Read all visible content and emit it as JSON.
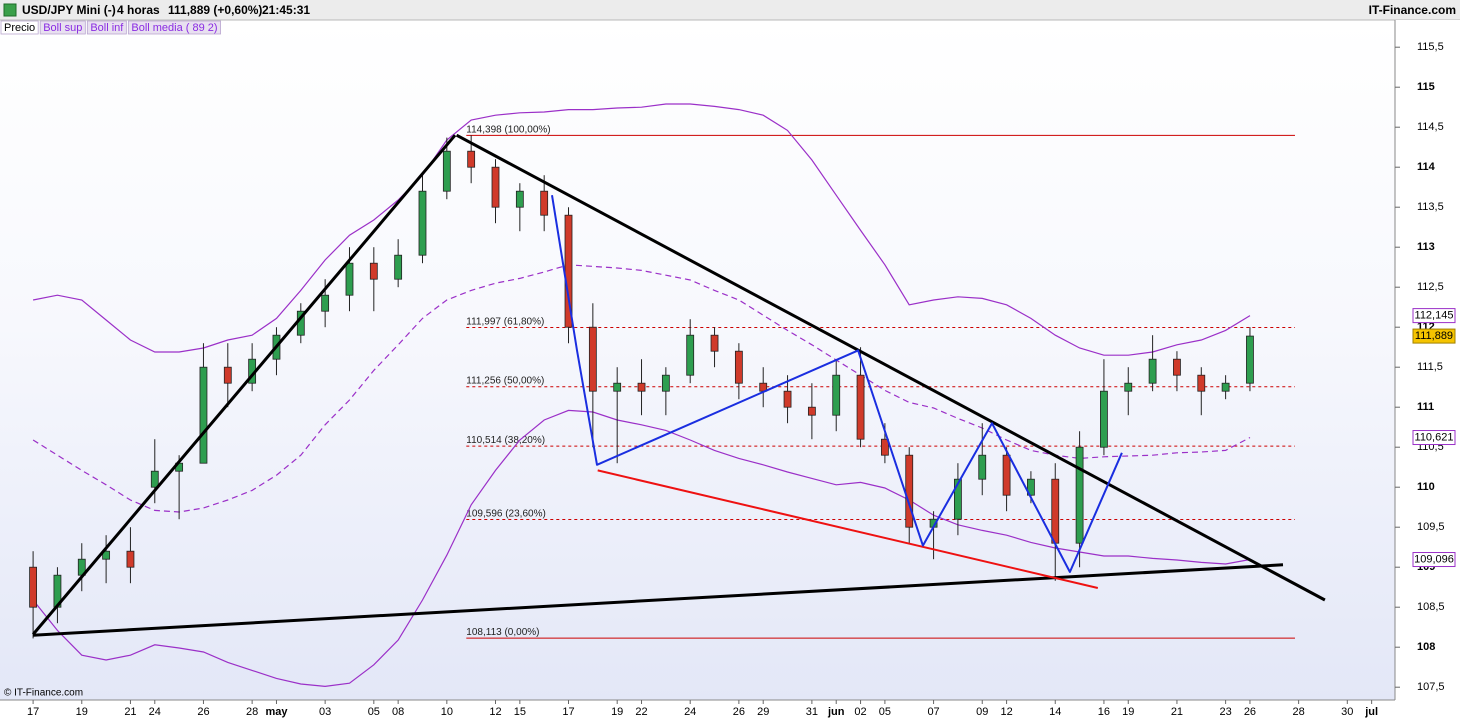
{
  "header": {
    "symbol": "USD/JPY Mini (-)",
    "period": "4 horas",
    "quote": "111,889 (+0,60%)",
    "time": "21:45:31",
    "brand": "IT-Finance.com"
  },
  "footer": "© IT-Finance.com",
  "chart_data": {
    "type": "candlestick",
    "x": [
      0,
      1,
      2,
      3,
      4,
      5,
      6,
      7,
      8,
      9,
      10,
      11,
      12,
      13,
      14,
      15,
      16,
      17,
      18,
      19,
      20,
      21,
      22,
      23,
      24,
      25,
      26,
      27,
      28,
      29,
      30,
      31,
      32,
      33,
      34,
      35,
      36,
      37,
      38,
      39,
      40,
      41,
      42,
      43,
      44,
      45,
      46,
      47,
      48,
      49,
      50
    ],
    "xlim": [
      -1.36,
      55.96
    ],
    "xticks": [
      {
        "value": 0,
        "label": "17"
      },
      {
        "value": 2,
        "label": "19"
      },
      {
        "value": 4,
        "label": "21"
      },
      {
        "value": 5,
        "label": "24"
      },
      {
        "value": 7,
        "label": "26"
      },
      {
        "value": 9,
        "label": "28"
      },
      {
        "value": 10,
        "label": "may"
      },
      {
        "value": 12,
        "label": "03"
      },
      {
        "value": 14,
        "label": "05"
      },
      {
        "value": 15,
        "label": "08"
      },
      {
        "value": 17,
        "label": "10"
      },
      {
        "value": 19,
        "label": "12"
      },
      {
        "value": 20,
        "label": "15"
      },
      {
        "value": 22,
        "label": "17"
      },
      {
        "value": 24,
        "label": "19"
      },
      {
        "value": 25,
        "label": "22"
      },
      {
        "value": 27,
        "label": "24"
      },
      {
        "value": 29,
        "label": "26"
      },
      {
        "value": 30,
        "label": "29"
      },
      {
        "value": 32,
        "label": "31"
      },
      {
        "value": 33,
        "label": "jun"
      },
      {
        "value": 34,
        "label": "02"
      },
      {
        "value": 35,
        "label": "05"
      },
      {
        "value": 37,
        "label": "07"
      },
      {
        "value": 39,
        "label": "09"
      },
      {
        "value": 40,
        "label": "12"
      },
      {
        "value": 42,
        "label": "14"
      },
      {
        "value": 44,
        "label": "16"
      },
      {
        "value": 45,
        "label": "19"
      },
      {
        "value": 47,
        "label": "21"
      },
      {
        "value": 49,
        "label": "23"
      },
      {
        "value": 50,
        "label": "26"
      },
      {
        "value": 52,
        "label": "28"
      },
      {
        "value": 54,
        "label": "30"
      },
      {
        "value": 55,
        "label": "jul"
      }
    ],
    "ylim": [
      107.34,
      115.84
    ],
    "yticks": [
      {
        "value": 107.5,
        "label": "107,5"
      },
      108,
      {
        "value": 108.5,
        "label": "108,5"
      },
      109,
      {
        "value": 109.5,
        "label": "109,5"
      },
      110,
      {
        "value": 110.5,
        "label": "110,5"
      },
      111,
      {
        "value": 111.5,
        "label": "111,5"
      },
      112,
      {
        "value": 112.5,
        "label": "112,5"
      },
      113,
      {
        "value": 113.5,
        "label": "113,5"
      },
      114,
      {
        "value": 114.5,
        "label": "114,5"
      },
      115,
      {
        "value": 115.5,
        "label": "115,5"
      }
    ],
    "candles": {
      "name": "Precio",
      "up_color": "#2e9e4f",
      "down_color": "#d03a2a",
      "last_label": "111,889",
      "last_color": "#f5c400",
      "open": [
        109.0,
        108.5,
        108.9,
        109.1,
        109.2,
        110.0,
        110.2,
        110.3,
        111.5,
        111.3,
        111.6,
        111.9,
        112.2,
        112.4,
        112.8,
        112.6,
        112.9,
        113.7,
        114.2,
        114.0,
        113.5,
        113.7,
        113.4,
        112.0,
        111.2,
        111.3,
        111.2,
        111.4,
        111.9,
        111.7,
        111.3,
        111.2,
        111.0,
        110.9,
        111.4,
        110.6,
        110.4,
        109.5,
        109.6,
        110.1,
        110.4,
        109.9,
        110.1,
        109.3,
        110.5,
        111.2,
        111.3,
        111.6,
        111.4,
        111.2,
        111.3
      ],
      "high": [
        109.2,
        109.0,
        109.3,
        109.4,
        109.5,
        110.6,
        110.4,
        111.8,
        111.8,
        111.8,
        112.0,
        112.3,
        112.6,
        113.0,
        113.0,
        113.1,
        113.9,
        114.37,
        114.4,
        114.1,
        113.8,
        113.9,
        113.5,
        112.3,
        111.5,
        111.6,
        111.5,
        112.1,
        112.0,
        111.8,
        111.5,
        111.4,
        111.3,
        111.6,
        111.75,
        110.8,
        110.5,
        109.7,
        110.3,
        110.8,
        110.5,
        110.2,
        110.3,
        110.7,
        111.6,
        111.5,
        111.9,
        111.7,
        111.5,
        111.4,
        112.0
      ],
      "low": [
        108.11,
        108.3,
        108.7,
        108.8,
        108.8,
        109.8,
        109.6,
        110.3,
        111.0,
        111.2,
        111.4,
        111.8,
        112.0,
        112.2,
        112.2,
        112.5,
        112.8,
        113.6,
        113.8,
        113.3,
        113.2,
        113.2,
        111.8,
        110.5,
        110.3,
        110.9,
        110.9,
        111.3,
        111.5,
        111.1,
        111.0,
        110.8,
        110.6,
        110.7,
        110.5,
        110.3,
        109.3,
        109.1,
        109.4,
        109.9,
        109.7,
        109.8,
        108.83,
        109.0,
        110.4,
        110.9,
        111.2,
        111.2,
        110.9,
        111.1,
        111.2
      ],
      "close": [
        108.5,
        108.9,
        109.1,
        109.2,
        109.0,
        110.2,
        110.3,
        111.5,
        111.3,
        111.6,
        111.9,
        112.2,
        112.4,
        112.8,
        112.6,
        112.9,
        113.7,
        114.2,
        114.0,
        113.5,
        113.7,
        113.4,
        112.0,
        111.2,
        111.3,
        111.2,
        111.4,
        111.9,
        111.7,
        111.3,
        111.2,
        111.0,
        110.9,
        111.4,
        110.6,
        110.4,
        109.5,
        109.6,
        110.1,
        110.4,
        109.9,
        110.1,
        109.3,
        110.5,
        111.2,
        111.3,
        111.6,
        111.4,
        111.2,
        111.3,
        111.889
      ]
    },
    "series": [
      {
        "name": "Boll sup",
        "color": "#9b30c8",
        "dashed": false,
        "last_label": "112,145",
        "values": [
          112.34,
          112.4,
          112.34,
          112.09,
          111.84,
          111.69,
          111.69,
          111.74,
          111.84,
          111.9,
          112.11,
          112.46,
          112.84,
          113.15,
          113.34,
          113.59,
          113.9,
          114.34,
          114.59,
          114.65,
          114.68,
          114.69,
          114.72,
          114.72,
          114.74,
          114.75,
          114.79,
          114.79,
          114.76,
          114.72,
          114.65,
          114.46,
          114.09,
          113.65,
          113.21,
          112.78,
          112.28,
          112.34,
          112.38,
          112.36,
          112.28,
          112.11,
          111.9,
          111.74,
          111.65,
          111.65,
          111.69,
          111.78,
          111.84,
          111.96,
          112.145
        ]
      },
      {
        "name": "Boll inf",
        "color": "#9b30c8",
        "dashed": false,
        "last_label": "109,096",
        "values": [
          108.59,
          108.21,
          107.9,
          107.84,
          107.9,
          108.03,
          107.99,
          107.94,
          107.81,
          107.71,
          107.61,
          107.54,
          107.51,
          107.55,
          107.78,
          108.09,
          108.59,
          109.15,
          109.78,
          110.21,
          110.59,
          110.84,
          110.96,
          110.94,
          110.84,
          110.78,
          110.71,
          110.59,
          110.46,
          110.36,
          110.28,
          110.19,
          110.11,
          110.03,
          110.06,
          109.99,
          109.84,
          109.65,
          109.53,
          109.46,
          109.4,
          109.31,
          109.24,
          109.19,
          109.14,
          109.14,
          109.11,
          109.09,
          109.06,
          109.04,
          109.096
        ]
      },
      {
        "name": "Boll media ( 89 2)",
        "color": "#9b30c8",
        "dashed": true,
        "last_label": "110,621",
        "values": [
          110.59,
          110.4,
          110.21,
          110.03,
          109.84,
          109.71,
          109.69,
          109.74,
          109.84,
          109.96,
          110.15,
          110.4,
          110.78,
          111.09,
          111.46,
          111.78,
          112.11,
          112.34,
          112.46,
          112.55,
          112.61,
          112.69,
          112.78,
          112.76,
          112.74,
          112.71,
          112.65,
          112.59,
          112.46,
          112.34,
          112.15,
          111.96,
          111.78,
          111.59,
          111.4,
          111.21,
          111.06,
          110.99,
          110.86,
          110.74,
          110.59,
          110.46,
          110.4,
          110.36,
          110.38,
          110.39,
          110.4,
          110.43,
          110.44,
          110.46,
          110.621
        ]
      }
    ],
    "fib": {
      "color": "#cc0000",
      "x_start": 17.8,
      "x_end": 51.85,
      "levels": [
        {
          "value": 114.398,
          "label": "114,398 (100,00%)",
          "dashed": false
        },
        {
          "value": 111.997,
          "label": "111,997 (61,80%)",
          "dashed": true
        },
        {
          "value": 111.256,
          "label": "111,256 (50,00%)",
          "dashed": true
        },
        {
          "value": 110.514,
          "label": "110,514 (38,20%)",
          "dashed": true
        },
        {
          "value": 109.596,
          "label": "109,596 (23,60%)",
          "dashed": true
        },
        {
          "value": 108.113,
          "label": "108,113 (0,00%)",
          "dashed": false
        }
      ]
    },
    "drawings": [
      {
        "color": "#000000",
        "width": 3,
        "points": [
          [
            0,
            108.16
          ],
          [
            17.34,
            114.4
          ]
        ]
      },
      {
        "color": "#000000",
        "width": 3,
        "points": [
          [
            17.4,
            114.4
          ],
          [
            53.08,
            108.59
          ]
        ]
      },
      {
        "color": "#000000",
        "width": 3,
        "points": [
          [
            0,
            108.15
          ],
          [
            51.36,
            109.03
          ]
        ]
      },
      {
        "color": "#ee1111",
        "width": 2,
        "points": [
          [
            23.2,
            110.21
          ],
          [
            43.75,
            108.74
          ]
        ]
      },
      {
        "color": "#1a2ee0",
        "width": 2,
        "points": [
          [
            21.32,
            113.65
          ],
          [
            22.35,
            111.71
          ],
          [
            23.17,
            110.28
          ],
          [
            33.9,
            111.71
          ],
          [
            36.56,
            109.27
          ],
          [
            39.4,
            110.8
          ],
          [
            42.6,
            108.94
          ],
          [
            44.74,
            110.43
          ]
        ]
      }
    ]
  }
}
